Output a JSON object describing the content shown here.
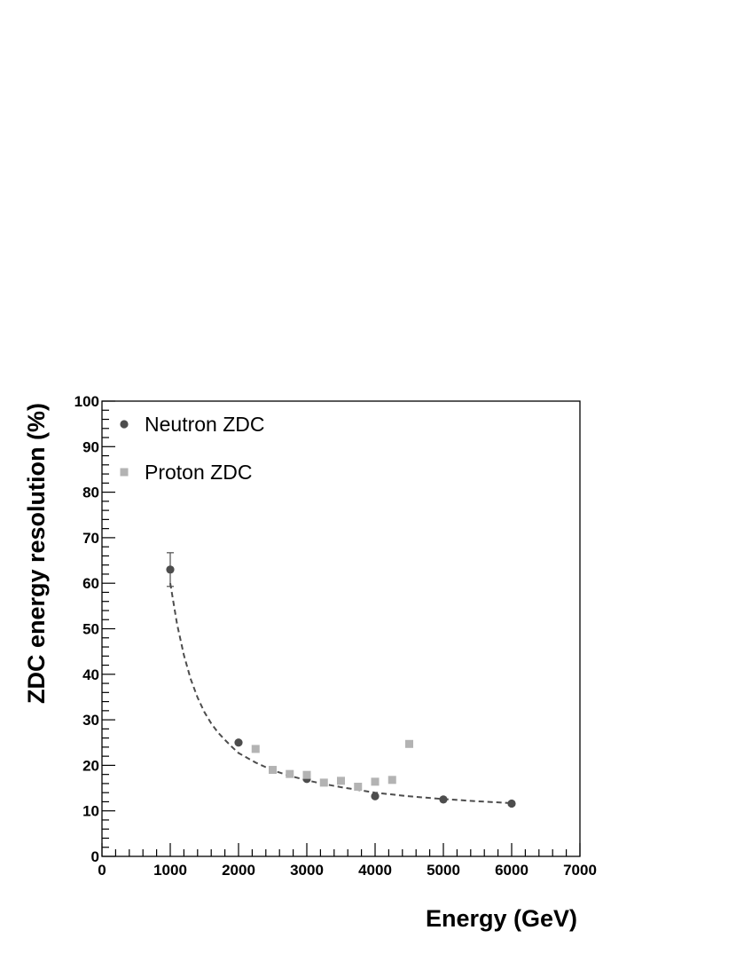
{
  "chart_data": {
    "type": "scatter",
    "xlabel": "Energy (GeV)",
    "ylabel": "ZDC energy resolution (%)",
    "xlim": [
      0,
      7000
    ],
    "ylim": [
      0,
      100
    ],
    "x_ticks": [
      "0",
      "1000",
      "2000",
      "3000",
      "4000",
      "5000",
      "6000",
      "7000"
    ],
    "y_ticks": [
      "0",
      "10",
      "20",
      "30",
      "40",
      "50",
      "60",
      "70",
      "80",
      "90",
      "100"
    ],
    "grid": false,
    "legend_position": "top-left",
    "series": [
      {
        "name": "Neutron ZDC",
        "marker": "circle",
        "color": "#4d4d4d",
        "x": [
          1000,
          2000,
          3000,
          4000,
          5000,
          6000
        ],
        "y": [
          63.0,
          25.0,
          17.0,
          13.2,
          12.5,
          11.6
        ],
        "error_y": [
          3.7,
          0,
          0,
          0,
          0,
          0
        ]
      },
      {
        "name": "Proton ZDC",
        "marker": "square",
        "color": "#b3b3b3",
        "x": [
          2250,
          2500,
          2750,
          3000,
          3250,
          3500,
          3750,
          4000,
          4250,
          4500
        ],
        "y": [
          23.6,
          19.0,
          18.1,
          17.9,
          16.2,
          16.6,
          15.3,
          16.4,
          16.8,
          24.7
        ]
      }
    ],
    "fits": [
      {
        "series": "Neutron ZDC",
        "style": "dashed",
        "color": "#4d4d4d",
        "x": [
          1000,
          1100,
          1200,
          1300,
          1400,
          1500,
          1600,
          1700,
          1800,
          1900,
          2000,
          2250,
          2500,
          2750,
          3000,
          3250,
          3500,
          3750,
          4000,
          4500,
          5000,
          5500,
          6000
        ],
        "y": [
          60.0,
          51.0,
          44.2,
          38.9,
          34.9,
          31.7,
          29.2,
          27.2,
          25.6,
          24.1,
          22.7,
          20.6,
          18.9,
          17.7,
          16.7,
          15.9,
          15.2,
          14.6,
          14.0,
          13.2,
          12.6,
          12.1,
          11.7
        ]
      }
    ]
  }
}
